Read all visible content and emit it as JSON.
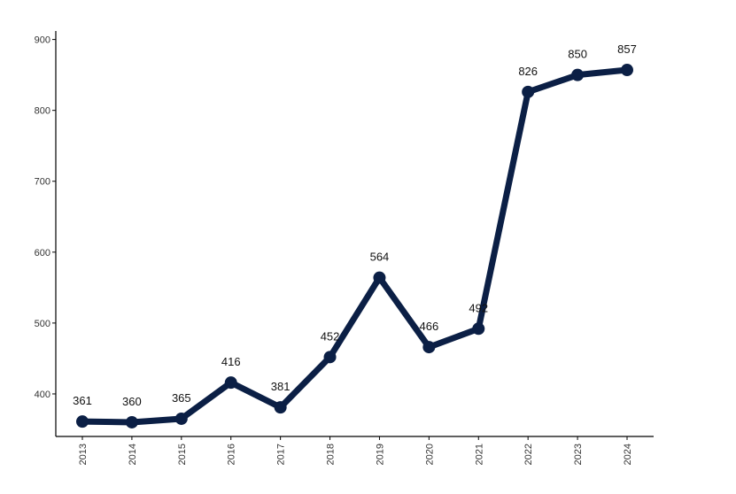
{
  "chart_data": {
    "type": "line",
    "categories": [
      "2013",
      "2014",
      "2015",
      "2016",
      "2017",
      "2018",
      "2019",
      "2020",
      "2021",
      "2022",
      "2023",
      "2024"
    ],
    "series": [
      {
        "values": [
          361,
          360,
          365,
          416,
          381,
          452,
          564,
          466,
          492,
          826,
          850,
          857
        ],
        "color": "#0b1f45"
      }
    ],
    "data_labels": [
      "361",
      "360",
      "365",
      "416",
      "381",
      "452",
      "564",
      "466",
      "492",
      "826",
      "850",
      "857"
    ],
    "y_ticks": [
      400,
      500,
      600,
      700,
      800,
      900
    ],
    "y_tick_labels": [
      "400",
      "500",
      "600",
      "700",
      "800",
      "900"
    ],
    "ylim": [
      340,
      912
    ],
    "grid": false,
    "xlabel": "",
    "ylabel": "",
    "title": ""
  }
}
